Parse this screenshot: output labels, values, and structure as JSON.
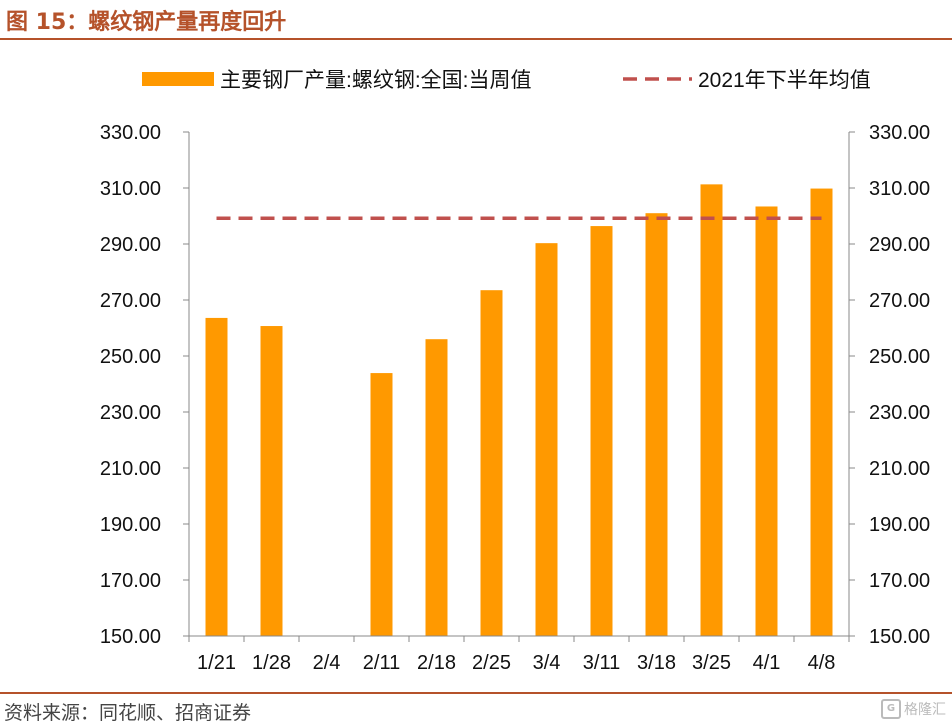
{
  "header": {
    "title": "图 15：螺纹钢产量再度回升"
  },
  "footer": {
    "source": "资料来源：同花顺、招商证券",
    "watermark": "格隆汇"
  },
  "colors": {
    "bar": "#FF9900",
    "avg_line": "#C0504D",
    "accent": "#B5522A"
  },
  "chart_data": {
    "type": "bar",
    "title": "",
    "xlabel": "",
    "ylabel": "",
    "categories": [
      "1/21",
      "1/28",
      "2/4",
      "2/11",
      "2/18",
      "2/25",
      "3/4",
      "3/11",
      "3/18",
      "3/25",
      "4/1",
      "4/8"
    ],
    "series": [
      {
        "name": "主要钢厂产量:螺纹钢:全国:当周值",
        "type": "bar",
        "values": [
          263.6,
          260.7,
          null,
          243.9,
          256.0,
          273.5,
          290.3,
          296.4,
          301.0,
          311.3,
          303.4,
          309.8
        ]
      },
      {
        "name": "2021年下半年均值",
        "type": "line",
        "style": "dashed",
        "values": [
          299.2,
          299.2,
          299.2,
          299.2,
          299.2,
          299.2,
          299.2,
          299.2,
          299.2,
          299.2,
          299.2,
          299.2
        ]
      }
    ],
    "ylim": [
      150,
      330
    ],
    "yticks": [
      "150.00",
      "170.00",
      "190.00",
      "210.00",
      "230.00",
      "250.00",
      "270.00",
      "290.00",
      "310.00",
      "330.00"
    ],
    "secondary_yticks": [
      "150.00",
      "170.00",
      "190.00",
      "210.00",
      "230.00",
      "250.00",
      "270.00",
      "290.00",
      "310.00",
      "330.00"
    ],
    "grid": false,
    "legend_position": "top"
  }
}
